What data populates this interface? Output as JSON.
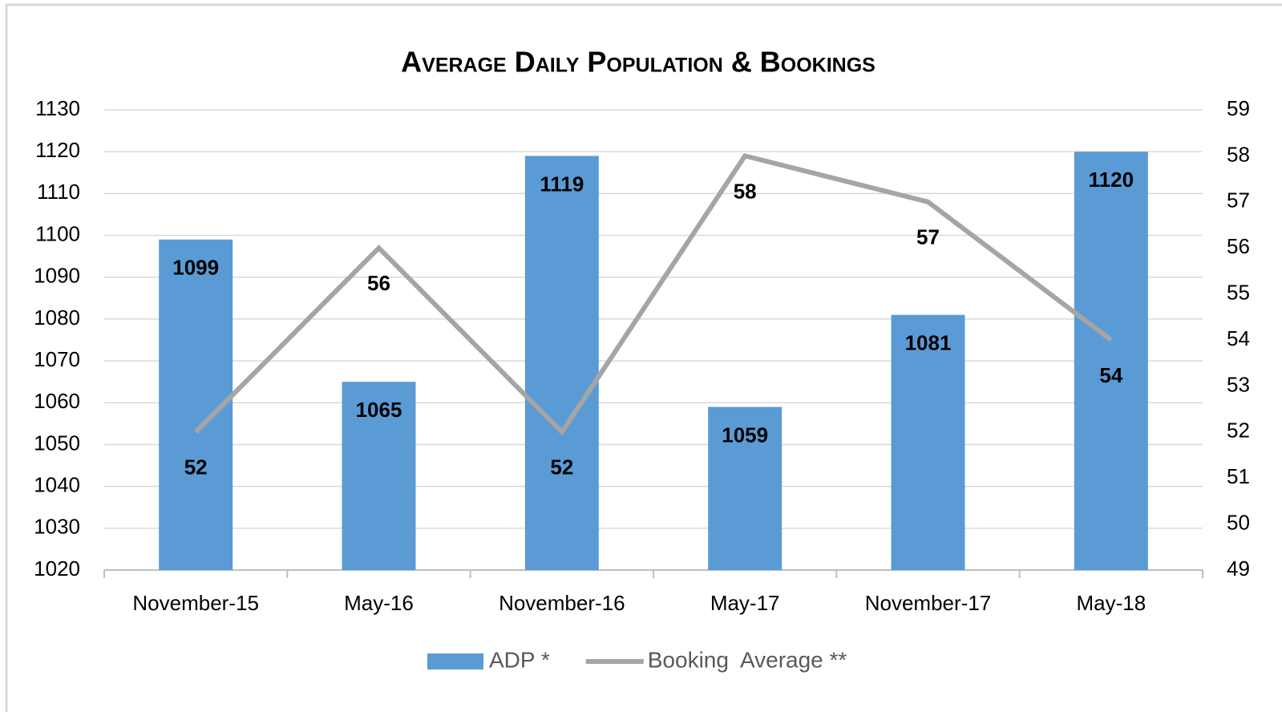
{
  "chart_data": {
    "type": "bar",
    "title": "Average Daily Population & Bookings",
    "categories": [
      "November-15",
      "May-16",
      "November-16",
      "May-17",
      "November-17",
      "May-18"
    ],
    "series": [
      {
        "name": "ADP *",
        "type": "bar",
        "color": "#5b9bd5",
        "values": [
          1099,
          1065,
          1119,
          1059,
          1081,
          1120
        ]
      },
      {
        "name": "Booking  Average **",
        "type": "line",
        "axis": "y2",
        "color": "#a5a5a5",
        "values": [
          52,
          56,
          52,
          58,
          57,
          54
        ]
      }
    ],
    "ylim": [
      1020,
      1130
    ],
    "yticks": [
      1020,
      1030,
      1040,
      1050,
      1060,
      1070,
      1080,
      1090,
      1100,
      1110,
      1120,
      1130
    ],
    "y2lim": [
      49,
      59
    ],
    "y2ticks": [
      49,
      50,
      51,
      52,
      53,
      54,
      55,
      56,
      57,
      58,
      59
    ],
    "grid": true,
    "legend": "bottom"
  }
}
